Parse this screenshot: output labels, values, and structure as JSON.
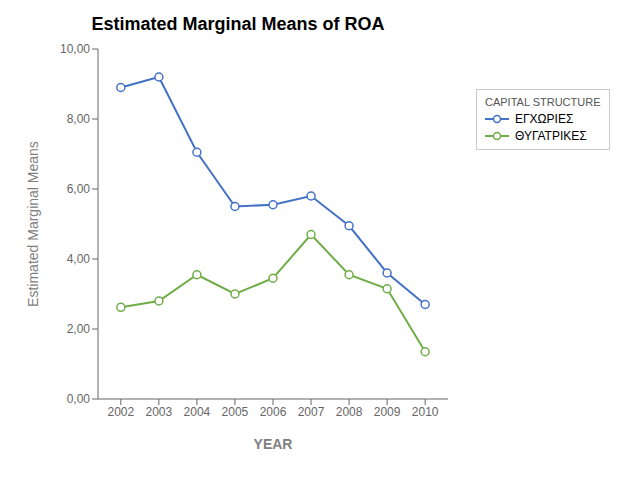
{
  "chart_data": {
    "type": "line",
    "title": "Estimated Marginal Means of ROA",
    "x_label": "YEAR",
    "y_label": "Estimated Marginal Means",
    "x": [
      2002,
      2003,
      2004,
      2005,
      2006,
      2007,
      2008,
      2009,
      2010
    ],
    "xlim": [
      2001.4,
      2010.6
    ],
    "xticks": [
      2002,
      2003,
      2004,
      2005,
      2006,
      2007,
      2008,
      2009,
      2010
    ],
    "ylim": [
      0.0,
      10.0
    ],
    "yticks": [
      {
        "value": 0.0,
        "label": "0,00"
      },
      {
        "value": 2.0,
        "label": "2,00"
      },
      {
        "value": 4.0,
        "label": "4,00"
      },
      {
        "value": 6.0,
        "label": "6,00"
      },
      {
        "value": 8.0,
        "label": "8,00"
      },
      {
        "value": 10.0,
        "label": "10,00"
      }
    ],
    "series": [
      {
        "name": "ΕΓΧΩΡΙΕΣ",
        "color": "#4472C4",
        "marker": "circle",
        "line_style": "solid",
        "values": [
          8.9,
          9.2,
          7.05,
          5.5,
          5.55,
          5.8,
          4.95,
          3.6,
          2.7
        ]
      },
      {
        "name": "ΘΥΓΑΤΡΙΚΕΣ",
        "color": "#70AD47",
        "marker": "circle",
        "line_style": "solid",
        "values": [
          2.62,
          2.8,
          3.55,
          3.0,
          3.45,
          4.7,
          3.55,
          3.15,
          1.35
        ]
      }
    ],
    "legend_title": "CAPITAL STRUCTURE",
    "legend": "right",
    "grid": false
  }
}
